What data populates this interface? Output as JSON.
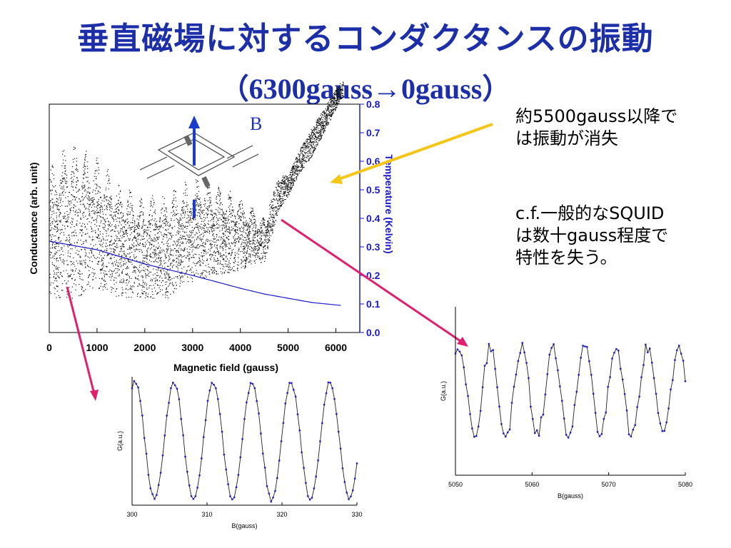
{
  "slide": {
    "title_line1": "垂直磁場に対するコンダクタンスの振動",
    "title_line2": "（6300gauss→0gauss）",
    "note1": [
      "約5500gauss以降で",
      "は振動が消失"
    ],
    "note2": [
      "c.f.一般的なSQUID",
      "は数十gauss程度で",
      "特性を失う。"
    ],
    "field_label": "B"
  },
  "colors": {
    "title": "#1c2ea8",
    "temperature_axis": "#1a1acc",
    "arrow_yellow": "#f5c518",
    "arrow_pink": "#e0206e",
    "fit_points": "#1a1acc"
  },
  "chart_data": [
    {
      "type": "scatter",
      "title": "",
      "xlabel": "Magnetic field (gauss)",
      "ylabel": "Conductance   (arb. unit)",
      "y2label": "Temperature (Kelvin)",
      "xlim": [
        0,
        6500
      ],
      "x_ticks": [
        "0",
        "1000",
        "2000",
        "3000",
        "4000",
        "5000",
        "6000"
      ],
      "y2lim": [
        0,
        0.8
      ],
      "y2_ticks": [
        "0.0",
        "0.1",
        "0.2",
        "0.3",
        "0.4",
        "0.5",
        "0.6",
        "0.7",
        "0.8"
      ],
      "conductance_envelope": {
        "x": [
          0,
          500,
          1000,
          1500,
          2000,
          2500,
          3000,
          3500,
          4000,
          4500,
          4800,
          5000,
          5200,
          5500,
          5800,
          6100
        ],
        "upper": [
          0.6,
          0.68,
          0.62,
          0.52,
          0.48,
          0.5,
          0.55,
          0.52,
          0.48,
          0.4,
          0.55,
          0.55,
          0.63,
          0.72,
          0.8,
          0.88
        ],
        "lower": [
          0.12,
          0.12,
          0.15,
          0.12,
          0.12,
          0.12,
          0.18,
          0.2,
          0.22,
          0.25,
          0.43,
          0.48,
          0.55,
          0.62,
          0.72,
          0.82
        ]
      },
      "temperature": {
        "x": [
          0,
          1000,
          2000,
          3000,
          4000,
          4500,
          5000,
          5500,
          6100
        ],
        "y": [
          0.32,
          0.29,
          0.24,
          0.2,
          0.155,
          0.135,
          0.12,
          0.105,
          0.095
        ]
      }
    },
    {
      "type": "line",
      "xlabel": "B(gauss)",
      "ylabel": "G(a.u.)",
      "xlim": [
        300,
        330
      ],
      "x_ticks": [
        "300",
        "310",
        "320",
        "330"
      ],
      "period": 5.2,
      "phase": 303.0
    },
    {
      "type": "line",
      "xlabel": "B(gauss)",
      "ylabel": "G(a.u.)",
      "xlim": [
        5050,
        5080
      ],
      "x_ticks": [
        "5050",
        "5060",
        "5070",
        "5080"
      ],
      "period": 4.1,
      "phase": 5052.5
    }
  ]
}
